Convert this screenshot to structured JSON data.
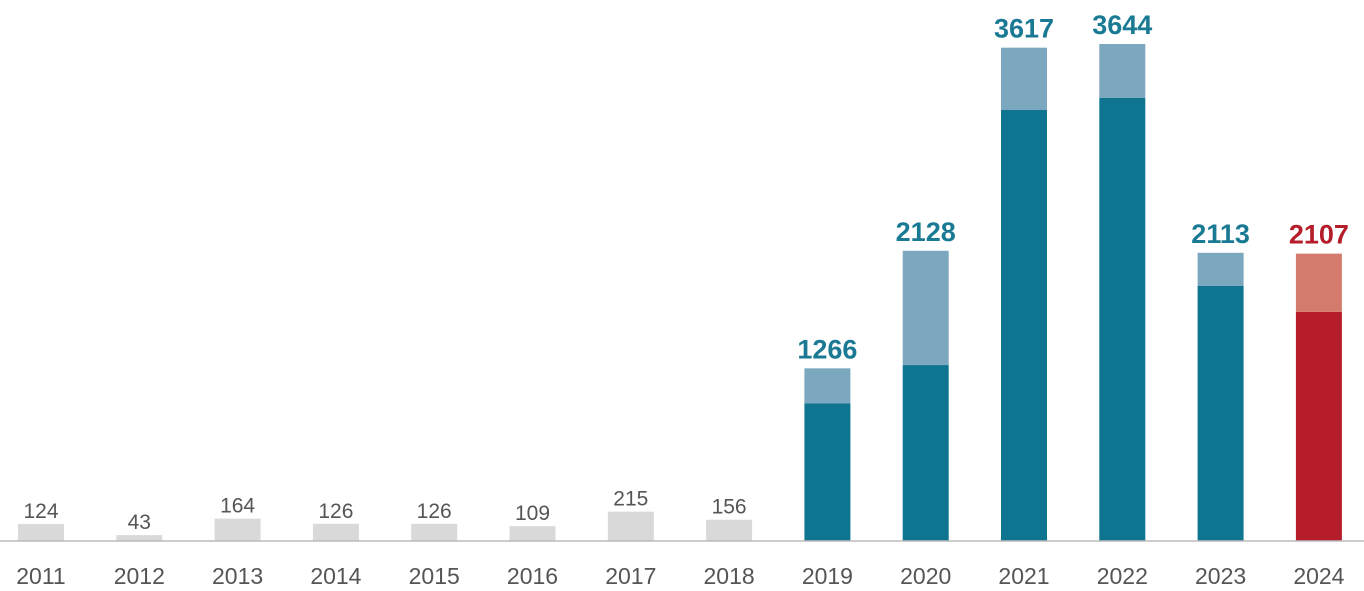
{
  "chart_data": {
    "type": "bar",
    "stacked": true,
    "grid": false,
    "legend": "none",
    "title": "",
    "xlabel": "",
    "ylabel": "",
    "ylim": [
      0,
      3700
    ],
    "categories": [
      "2011",
      "2012",
      "2013",
      "2014",
      "2015",
      "2016",
      "2017",
      "2018",
      "2019",
      "2020",
      "2021",
      "2022",
      "2023",
      "2024"
    ],
    "totals": [
      124,
      43,
      164,
      126,
      126,
      109,
      215,
      156,
      1266,
      2128,
      3617,
      3644,
      2113,
      2107
    ],
    "series": [
      {
        "values": [
          124,
          43,
          164,
          126,
          126,
          109,
          215,
          156,
          1010,
          1290,
          3160,
          3250,
          1870,
          1680
        ]
      },
      {
        "values": [
          0,
          0,
          0,
          0,
          0,
          0,
          0,
          0,
          256,
          838,
          457,
          394,
          243,
          427
        ]
      }
    ],
    "colors": {
      "minor_bar": "#d9d9d9",
      "minor_label": "#555555",
      "base": "#0e7490",
      "top": "#7ba7bf",
      "label": "#1a7a94",
      "highlight_base": "#b51d2a",
      "highlight_top": "#d47b6e",
      "highlight_label": "#b51d2a",
      "axis": "#bbbbbb"
    }
  }
}
